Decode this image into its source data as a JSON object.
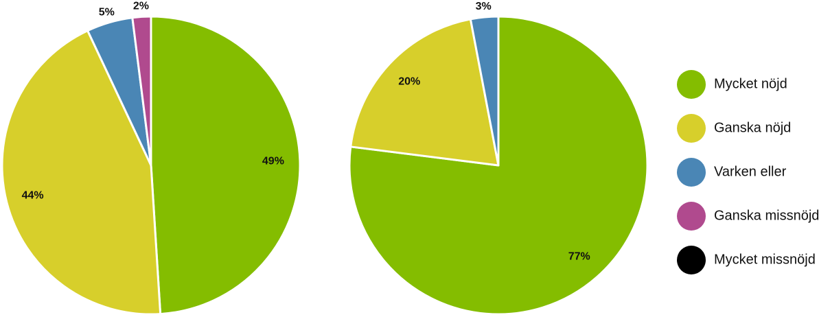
{
  "chart_data": [
    {
      "type": "pie",
      "categories": [
        "Mycket nöjd",
        "Ganska nöjd",
        "Varken eller",
        "Ganska missnöjd"
      ],
      "values": [
        49,
        44,
        5,
        2
      ],
      "value_labels": [
        "49%",
        "44%",
        "5%",
        "2%"
      ],
      "colors": [
        "#84bd00",
        "#d7cf2b",
        "#4a86b5",
        "#b04a8e"
      ]
    },
    {
      "type": "pie",
      "categories": [
        "Mycket nöjd",
        "Ganska nöjd",
        "Varken eller"
      ],
      "values": [
        77,
        20,
        3
      ],
      "value_labels": [
        "77%",
        "20%",
        "3%"
      ],
      "colors": [
        "#84bd00",
        "#d7cf2b",
        "#4a86b5"
      ]
    }
  ],
  "legend": {
    "labels": [
      "Mycket nöjd",
      "Ganska nöjd",
      "Varken eller",
      "Ganska missnöjd",
      "Mycket missnöjd"
    ],
    "colors": [
      "#84bd00",
      "#d7cf2b",
      "#4a86b5",
      "#b04a8e",
      "#000000"
    ]
  }
}
